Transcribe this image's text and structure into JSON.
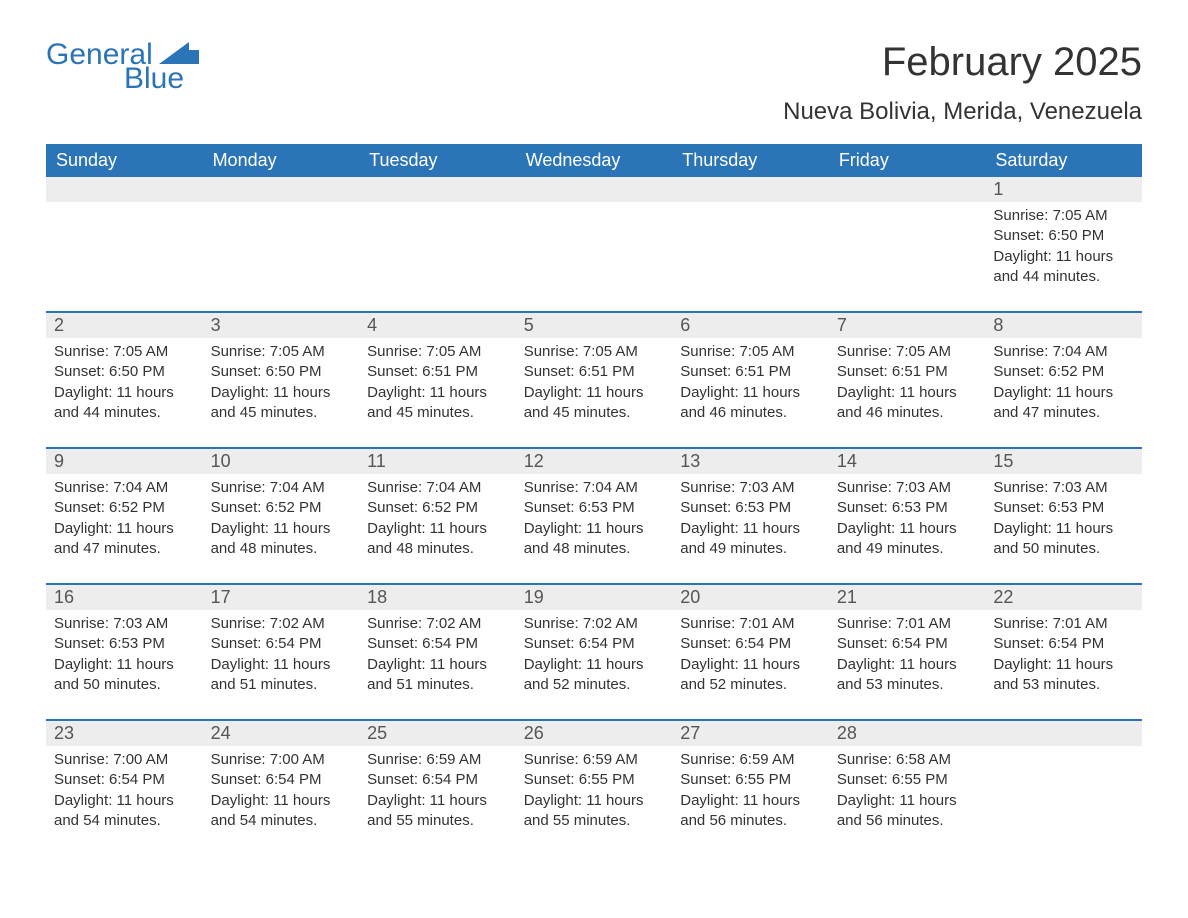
{
  "brand": {
    "word1": "General",
    "word2": "Blue",
    "flag_color": "#2b74b8"
  },
  "title": "February 2025",
  "location": "Nueva Bolivia, Merida, Venezuela",
  "colors": {
    "header_bg": "#2b74b8",
    "header_text": "#ffffff",
    "daynum_bg": "#ededed",
    "daynum_text": "#555555",
    "body_text": "#333333",
    "row_divider": "#2b74b8",
    "page_bg": "#ffffff"
  },
  "typography": {
    "title_fontsize": 40,
    "location_fontsize": 24,
    "weekday_fontsize": 18,
    "daynum_fontsize": 18,
    "body_fontsize": 15,
    "font_family": "Arial"
  },
  "weekdays": [
    "Sunday",
    "Monday",
    "Tuesday",
    "Wednesday",
    "Thursday",
    "Friday",
    "Saturday"
  ],
  "labels": {
    "sunrise": "Sunrise:",
    "sunset": "Sunset:",
    "daylight": "Daylight:"
  },
  "weeks": [
    [
      null,
      null,
      null,
      null,
      null,
      null,
      {
        "d": "1",
        "sunrise": "7:05 AM",
        "sunset": "6:50 PM",
        "daylight": "11 hours and 44 minutes."
      }
    ],
    [
      {
        "d": "2",
        "sunrise": "7:05 AM",
        "sunset": "6:50 PM",
        "daylight": "11 hours and 44 minutes."
      },
      {
        "d": "3",
        "sunrise": "7:05 AM",
        "sunset": "6:50 PM",
        "daylight": "11 hours and 45 minutes."
      },
      {
        "d": "4",
        "sunrise": "7:05 AM",
        "sunset": "6:51 PM",
        "daylight": "11 hours and 45 minutes."
      },
      {
        "d": "5",
        "sunrise": "7:05 AM",
        "sunset": "6:51 PM",
        "daylight": "11 hours and 45 minutes."
      },
      {
        "d": "6",
        "sunrise": "7:05 AM",
        "sunset": "6:51 PM",
        "daylight": "11 hours and 46 minutes."
      },
      {
        "d": "7",
        "sunrise": "7:05 AM",
        "sunset": "6:51 PM",
        "daylight": "11 hours and 46 minutes."
      },
      {
        "d": "8",
        "sunrise": "7:04 AM",
        "sunset": "6:52 PM",
        "daylight": "11 hours and 47 minutes."
      }
    ],
    [
      {
        "d": "9",
        "sunrise": "7:04 AM",
        "sunset": "6:52 PM",
        "daylight": "11 hours and 47 minutes."
      },
      {
        "d": "10",
        "sunrise": "7:04 AM",
        "sunset": "6:52 PM",
        "daylight": "11 hours and 48 minutes."
      },
      {
        "d": "11",
        "sunrise": "7:04 AM",
        "sunset": "6:52 PM",
        "daylight": "11 hours and 48 minutes."
      },
      {
        "d": "12",
        "sunrise": "7:04 AM",
        "sunset": "6:53 PM",
        "daylight": "11 hours and 48 minutes."
      },
      {
        "d": "13",
        "sunrise": "7:03 AM",
        "sunset": "6:53 PM",
        "daylight": "11 hours and 49 minutes."
      },
      {
        "d": "14",
        "sunrise": "7:03 AM",
        "sunset": "6:53 PM",
        "daylight": "11 hours and 49 minutes."
      },
      {
        "d": "15",
        "sunrise": "7:03 AM",
        "sunset": "6:53 PM",
        "daylight": "11 hours and 50 minutes."
      }
    ],
    [
      {
        "d": "16",
        "sunrise": "7:03 AM",
        "sunset": "6:53 PM",
        "daylight": "11 hours and 50 minutes."
      },
      {
        "d": "17",
        "sunrise": "7:02 AM",
        "sunset": "6:54 PM",
        "daylight": "11 hours and 51 minutes."
      },
      {
        "d": "18",
        "sunrise": "7:02 AM",
        "sunset": "6:54 PM",
        "daylight": "11 hours and 51 minutes."
      },
      {
        "d": "19",
        "sunrise": "7:02 AM",
        "sunset": "6:54 PM",
        "daylight": "11 hours and 52 minutes."
      },
      {
        "d": "20",
        "sunrise": "7:01 AM",
        "sunset": "6:54 PM",
        "daylight": "11 hours and 52 minutes."
      },
      {
        "d": "21",
        "sunrise": "7:01 AM",
        "sunset": "6:54 PM",
        "daylight": "11 hours and 53 minutes."
      },
      {
        "d": "22",
        "sunrise": "7:01 AM",
        "sunset": "6:54 PM",
        "daylight": "11 hours and 53 minutes."
      }
    ],
    [
      {
        "d": "23",
        "sunrise": "7:00 AM",
        "sunset": "6:54 PM",
        "daylight": "11 hours and 54 minutes."
      },
      {
        "d": "24",
        "sunrise": "7:00 AM",
        "sunset": "6:54 PM",
        "daylight": "11 hours and 54 minutes."
      },
      {
        "d": "25",
        "sunrise": "6:59 AM",
        "sunset": "6:54 PM",
        "daylight": "11 hours and 55 minutes."
      },
      {
        "d": "26",
        "sunrise": "6:59 AM",
        "sunset": "6:55 PM",
        "daylight": "11 hours and 55 minutes."
      },
      {
        "d": "27",
        "sunrise": "6:59 AM",
        "sunset": "6:55 PM",
        "daylight": "11 hours and 56 minutes."
      },
      {
        "d": "28",
        "sunrise": "6:58 AM",
        "sunset": "6:55 PM",
        "daylight": "11 hours and 56 minutes."
      },
      null
    ]
  ]
}
